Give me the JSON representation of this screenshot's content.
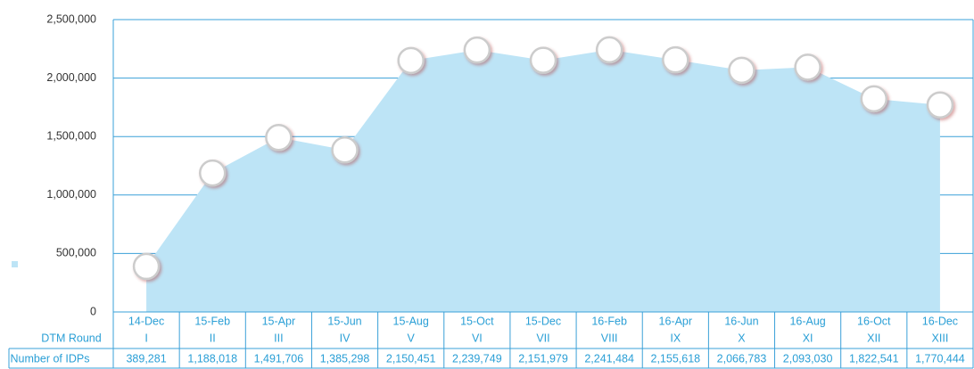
{
  "chart_data": {
    "type": "area",
    "x_label": "DTM Round",
    "row_label": "Number of IDPs",
    "categories": [
      "14-Dec",
      "15-Feb",
      "15-Apr",
      "15-Jun",
      "15-Aug",
      "15-Oct",
      "15-Dec",
      "16-Feb",
      "16-Apr",
      "16-Jun",
      "16-Aug",
      "16-Oct",
      "16-Dec"
    ],
    "rounds": [
      "I",
      "II",
      "III",
      "IV",
      "V",
      "VI",
      "VII",
      "VIII",
      "IX",
      "X",
      "XI",
      "XII",
      "XIII"
    ],
    "values": [
      389281,
      1188018,
      1491706,
      1385298,
      2150451,
      2239749,
      2151979,
      2241484,
      2155618,
      2066783,
      2093030,
      1822541,
      1770444
    ],
    "value_labels": [
      "389,281",
      "1,188,018",
      "1,491,706",
      "1,385,298",
      "2,150,451",
      "2,239,749",
      "2,151,979",
      "2,241,484",
      "2,155,618",
      "2,066,783",
      "2,093,030",
      "1,822,541",
      "1,770,444"
    ],
    "color": "#bde4f6",
    "ylim": [
      0,
      2500000
    ],
    "yticks": [
      0,
      {
        "value": 500000,
        "label": "500,000"
      },
      {
        "value": 1000000,
        "label": "1,000,000"
      },
      {
        "value": 1500000,
        "label": "1,500,000"
      },
      {
        "value": 2000000,
        "label": "2,000,000"
      },
      {
        "value": 2500000,
        "label": "2,500,000"
      }
    ],
    "grid": true
  }
}
